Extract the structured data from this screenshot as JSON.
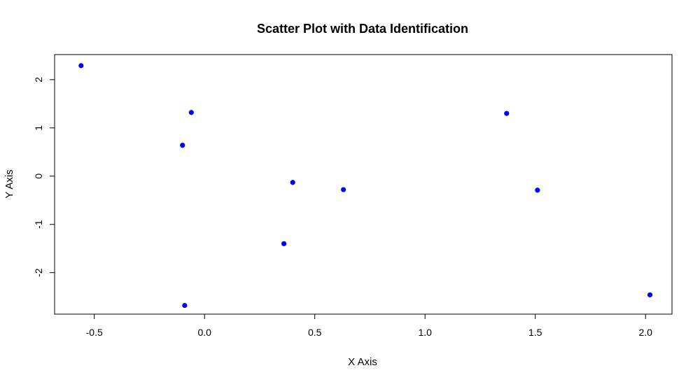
{
  "chart_data": {
    "type": "scatter",
    "title": "Scatter Plot with Data Identification",
    "xlabel": "X Axis",
    "ylabel": "Y Axis",
    "xlim": [
      -0.68,
      2.12
    ],
    "ylim": [
      -2.86,
      2.52
    ],
    "xticks": [
      -0.5,
      0.0,
      0.5,
      1.0,
      1.5,
      2.0
    ],
    "xtick_labels": [
      "-0.5",
      "0.0",
      "0.5",
      "1.0",
      "1.5",
      "2.0"
    ],
    "yticks": [
      -2,
      -1,
      0,
      1,
      2
    ],
    "ytick_labels": [
      "-2",
      "-1",
      "0",
      "1",
      "2"
    ],
    "grid": false,
    "point_color": "#0000ff",
    "x": [
      -0.56,
      -0.06,
      -0.1,
      0.4,
      0.63,
      1.37,
      1.51,
      0.36,
      -0.09,
      2.02
    ],
    "y": [
      2.29,
      1.32,
      0.64,
      -0.13,
      -0.28,
      1.3,
      -0.29,
      -1.4,
      -2.68,
      -2.46
    ]
  }
}
